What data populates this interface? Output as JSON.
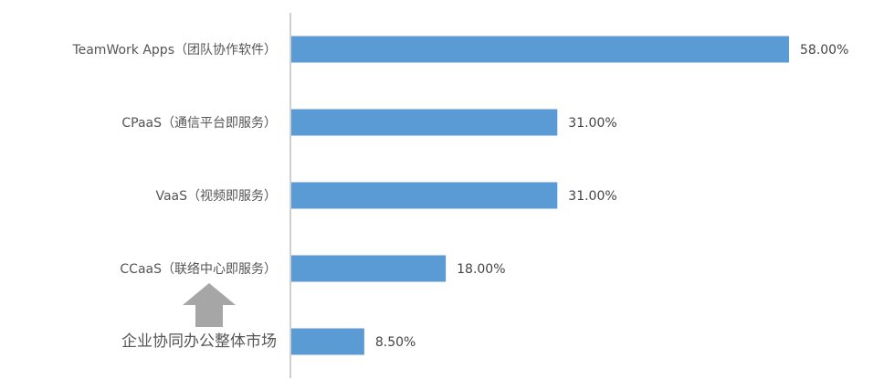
{
  "chart_data": {
    "type": "bar",
    "orientation": "horizontal",
    "categories": [
      "TeamWork Apps（团队协作软件）",
      "CPaaS（通信平台即服务）",
      "VaaS（视频即服务）",
      "CCaaS（联络中心即服务）",
      "企业协同办公整体市场"
    ],
    "values": [
      58.0,
      31.0,
      31.0,
      18.0,
      8.5
    ],
    "value_labels": [
      "58.00%",
      "31.00%",
      "31.00%",
      "18.00%",
      "8.50%"
    ],
    "unit": "%",
    "xlim": [
      0,
      60
    ],
    "title": "",
    "xlabel": "",
    "ylabel": "",
    "grid": false,
    "legend": "none",
    "bar_color": "#5B9BD5",
    "axis_color": "#BFBFBF",
    "annotation": {
      "icon": "up-arrow-icon",
      "color": "#A6A6A6"
    }
  }
}
